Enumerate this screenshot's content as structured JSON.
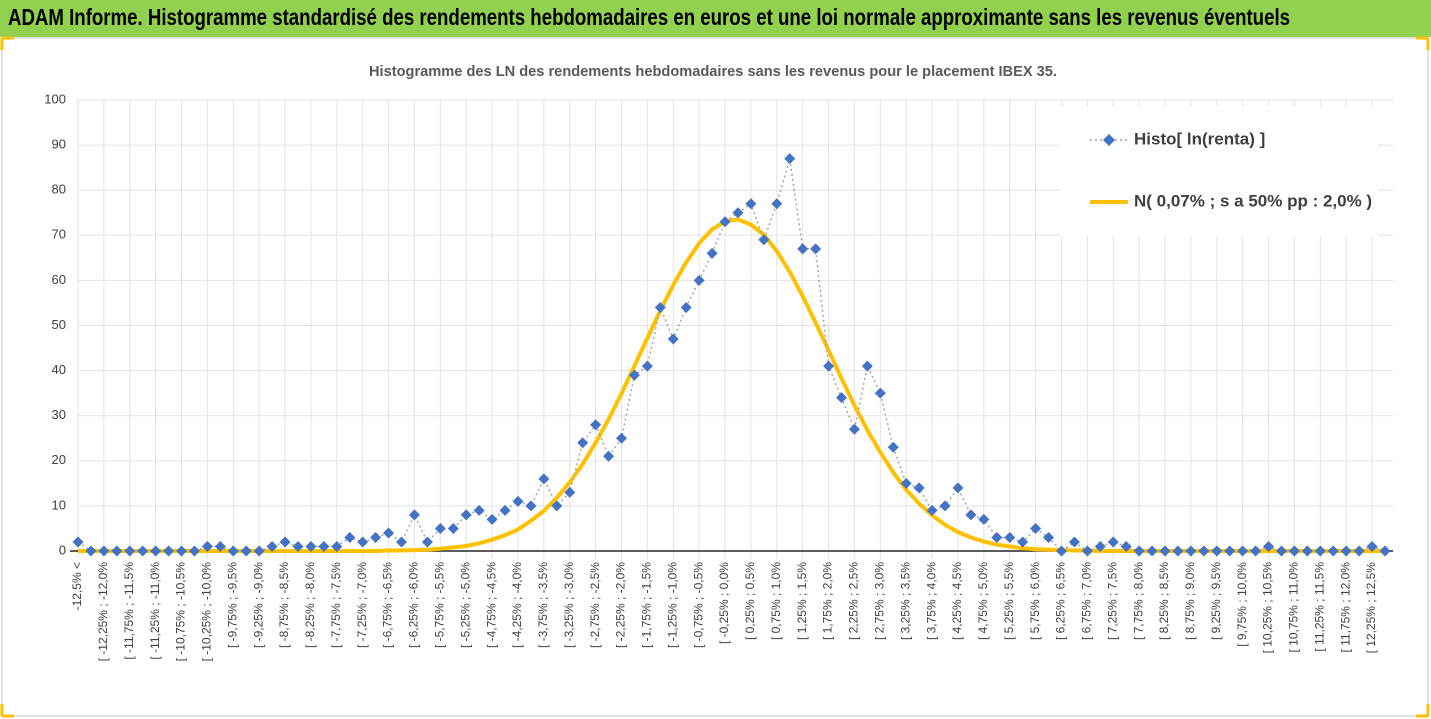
{
  "header": {
    "title": "ADAM Informe. Histogramme standardisé des rendements hebdomadaires en euros et une loi normale approximante sans les revenus éventuels"
  },
  "chart_data": {
    "type": "line",
    "title": "Histogramme  des LN des rendements hebdomadaires sans les revenus pour le placement IBEX 35.",
    "categories": [
      "-12,5% <",
      null,
      "[ -12,25% ; -12,0%",
      null,
      "[ -11,75% ; -11,5%",
      null,
      "[ -11,25% ; -11,0%",
      null,
      "[ -10,75% ; -10,5%",
      null,
      "[ -10,25% ; -10,0%",
      null,
      "[ -9,75% ; -9,5%",
      null,
      "[ -9,25% ; -9,0%",
      null,
      "[ -8,75% ; -8,5%",
      null,
      "[ -8,25% ; -8,0%",
      null,
      "[ -7,75% ; -7,5%",
      null,
      "[ -7,25% ; -7,0%",
      null,
      "[ -6,75% ; -6,5%",
      null,
      "[ -6,25% ; -6,0%",
      null,
      "[ -5,75% ; -5,5%",
      null,
      "[ -5,25% ; -5,0%",
      null,
      "[ -4,75% ; -4,5%",
      null,
      "[ -4,25% ; -4,0%",
      null,
      "[ -3,75% ; -3,5%",
      null,
      "[ -3,25% ; -3,0%",
      null,
      "[ -2,75% ; -2,5%",
      null,
      "[ -2,25% ; -2,0%",
      null,
      "[ -1,75% ; -1,5%",
      null,
      "[ -1,25% ; -1,0%",
      null,
      "[ -0,75% ; -0,5%",
      null,
      "[ -0,25% ; 0,0%",
      null,
      "[ 0,25% ; 0,5%",
      null,
      "[ 0,75% ; 1,0%",
      null,
      "[ 1,25% ; 1,5%",
      null,
      "[ 1,75% ; 2,0%",
      null,
      "[ 2,25% ; 2,5%",
      null,
      "[ 2,75% ; 3,0%",
      null,
      "[ 3,25% ; 3,5%",
      null,
      "[ 3,75% ; 4,0%",
      null,
      "[ 4,25% ; 4,5%",
      null,
      "[ 4,75% ; 5,0%",
      null,
      "[ 5,25% ; 5,5%",
      null,
      "[ 5,75% ; 6,0%",
      null,
      "[ 6,25% ; 6,5%",
      null,
      "[ 6,75% ; 7,0%",
      null,
      "[ 7,25% ; 7,5%",
      null,
      "[ 7,75% ; 8,0%",
      null,
      "[ 8,25% ; 8,5%",
      null,
      "[ 8,75% ; 9,0%",
      null,
      "[ 9,25% ; 9,5%",
      null,
      "[ 9,75% ; 10,0%",
      null,
      "[ 10,25% ; 10,5%",
      null,
      "[ 10,75% ; 11,0%",
      null,
      "[ 11,25% ; 11,5%",
      null,
      "[ 11,75% ; 12,0%",
      null,
      "[ 12,25% ; 12,5%",
      null
    ],
    "series": [
      {
        "name": "Histo[ ln(renta) ]",
        "color": "#4472c4",
        "line_color": "#a5a5a5",
        "line": "dotted",
        "marker": "diamond",
        "values": [
          2,
          0,
          0,
          0,
          0,
          0,
          0,
          0,
          0,
          0,
          1,
          1,
          0,
          0,
          0,
          1,
          2,
          1,
          1,
          1,
          1,
          3,
          2,
          3,
          4,
          2,
          8,
          2,
          5,
          5,
          8,
          9,
          7,
          9,
          11,
          10,
          16,
          10,
          13,
          24,
          28,
          21,
          25,
          39,
          41,
          54,
          47,
          54,
          60,
          66,
          73,
          75,
          77,
          69,
          77,
          87,
          67,
          67,
          41,
          34,
          27,
          41,
          35,
          23,
          15,
          14,
          9,
          10,
          14,
          8,
          7,
          3,
          3,
          2,
          5,
          3,
          0,
          2,
          0,
          1,
          2,
          1,
          0,
          0,
          0,
          0,
          0,
          0,
          0,
          0,
          0,
          0,
          1,
          0,
          0,
          0,
          0,
          0,
          0,
          0,
          1,
          0
        ]
      },
      {
        "name": "N( 0,07% ; s a 50% pp : 2,0% )",
        "color": "#ffc000",
        "line": "solid",
        "values": [
          0,
          0,
          0,
          0,
          0,
          0,
          0,
          0,
          0,
          0,
          0,
          0,
          0,
          0,
          0,
          0,
          0,
          0,
          0,
          0,
          0,
          0,
          0,
          0,
          0.1,
          0.1,
          0.2,
          0.3,
          0.5,
          0.8,
          1.1,
          1.7,
          2.5,
          3.5,
          4.8,
          6.7,
          8.9,
          11.8,
          15.2,
          19.3,
          24.0,
          29.2,
          34.9,
          41.0,
          47.2,
          53.3,
          59.0,
          64.0,
          68.2,
          71.3,
          73.1,
          73.5,
          72.4,
          70.1,
          66.5,
          61.9,
          56.5,
          50.6,
          44.5,
          38.3,
          32.3,
          26.8,
          21.9,
          17.4,
          13.6,
          10.5,
          7.9,
          5.8,
          4.2,
          3.0,
          2.1,
          1.4,
          1.0,
          0.6,
          0.4,
          0.3,
          0.2,
          0.1,
          0.1,
          0,
          0,
          0,
          0,
          0,
          0,
          0,
          0,
          0,
          0,
          0,
          0,
          0,
          0,
          0,
          0,
          0,
          0,
          0,
          0,
          0,
          0,
          0
        ]
      }
    ],
    "ylim": [
      0,
      100
    ],
    "yticks": [
      0,
      10,
      20,
      30,
      40,
      50,
      60,
      70,
      80,
      90,
      100
    ],
    "grid": true,
    "legend": "top-right"
  }
}
